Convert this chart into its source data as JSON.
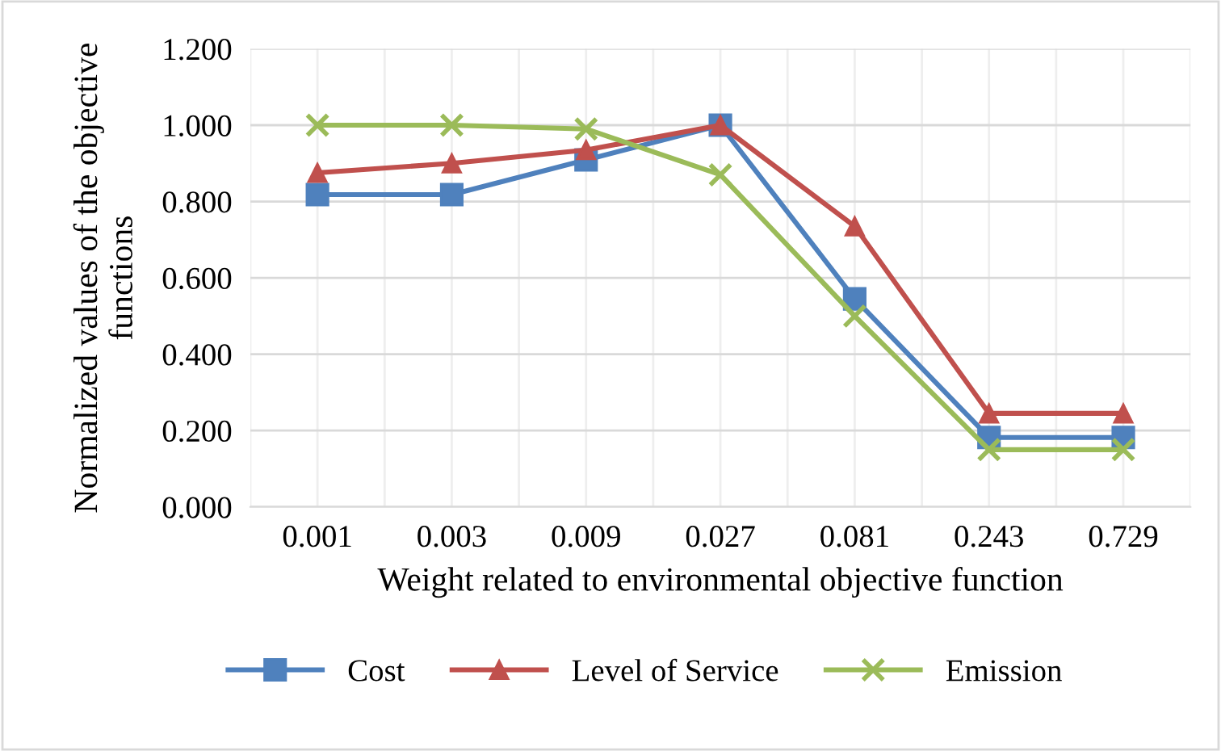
{
  "chart_data": {
    "type": "line",
    "xlabel": "Weight related to environmental objective function",
    "ylabel": "Normalized values of the objective functions",
    "categories": [
      "0.001",
      "0.003",
      "0.009",
      "0.027",
      "0.081",
      "0.243",
      "0.729"
    ],
    "series": [
      {
        "name": "Cost",
        "color": "#4f81bd",
        "marker": "square",
        "values": [
          0.818,
          0.818,
          0.909,
          1.0,
          0.545,
          0.182,
          0.182
        ]
      },
      {
        "name": "Level of Service",
        "color": "#c0504d",
        "marker": "triangle",
        "values": [
          0.875,
          0.9,
          0.935,
          1.0,
          0.735,
          0.245,
          0.245
        ]
      },
      {
        "name": "Emission",
        "color": "#9bbb59",
        "marker": "cross",
        "values": [
          1.0,
          1.0,
          0.99,
          0.87,
          0.5,
          0.15,
          0.15
        ]
      }
    ],
    "ylim": [
      0,
      1.2
    ],
    "yticks": [
      {
        "value": 0,
        "label": "0.000"
      },
      {
        "value": 0.2,
        "label": "0.200"
      },
      {
        "value": 0.4,
        "label": "0.400"
      },
      {
        "value": 0.6,
        "label": "0.600"
      },
      {
        "value": 0.8,
        "label": "0.800"
      },
      {
        "value": 1.0,
        "label": "1.000"
      },
      {
        "value": 1.2,
        "label": "1.200"
      }
    ],
    "grid": true,
    "legend": "bottom"
  }
}
